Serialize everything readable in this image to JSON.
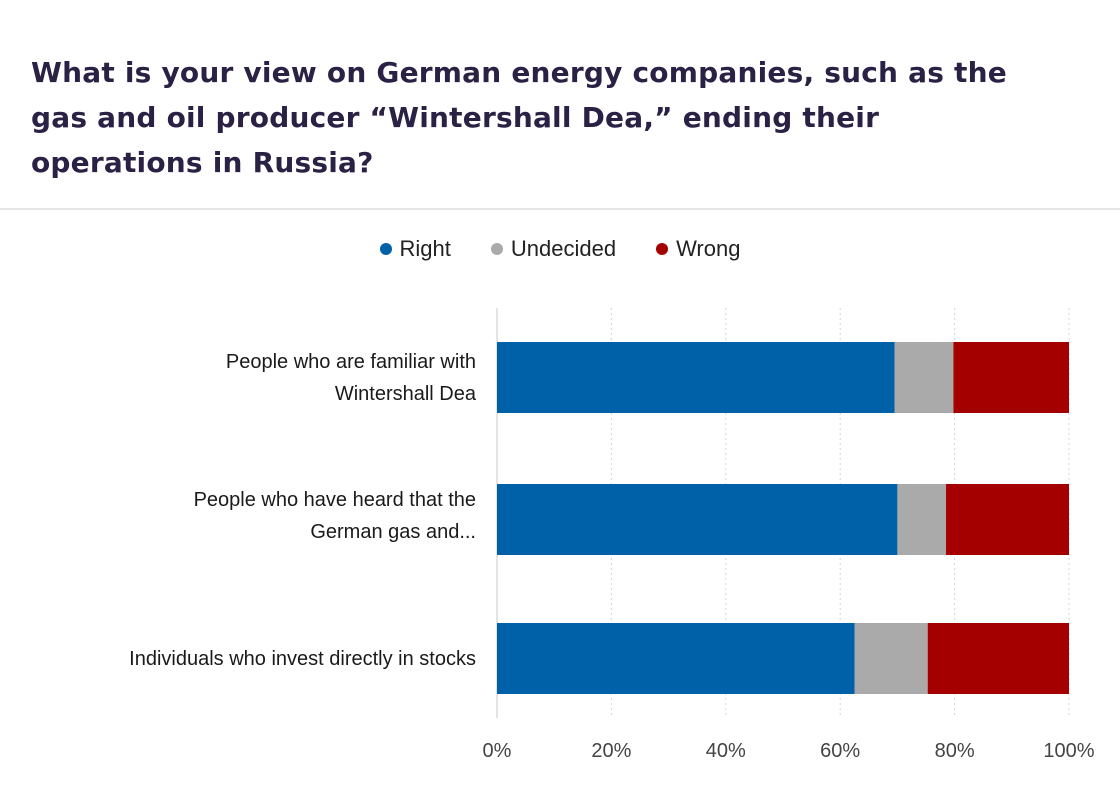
{
  "title_lines": [
    "What is your view on German energy companies, such as the",
    "gas and oil producer “Wintershall Dea,” ending their",
    "operations in Russia?"
  ],
  "chart_data": {
    "type": "bar",
    "orientation": "horizontal",
    "stacked": "percent",
    "categories": [
      [
        "People who are familiar with",
        "Wintershall Dea"
      ],
      [
        "People who have heard that the",
        "German gas and..."
      ],
      [
        "Individuals who invest directly in stocks"
      ]
    ],
    "series": [
      {
        "name": "Right",
        "color": "#0060a8",
        "values": [
          69.5,
          70,
          62.5
        ]
      },
      {
        "name": "Undecided",
        "color": "#aaaaaa",
        "values": [
          10.3,
          8.5,
          12.8
        ]
      },
      {
        "name": "Wrong",
        "color": "#a50000",
        "values": [
          20.2,
          21.5,
          24.7
        ]
      }
    ],
    "xlim": [
      0,
      100
    ],
    "xticks": [
      "0%",
      "20%",
      "40%",
      "60%",
      "80%",
      "100%"
    ],
    "legend_position": "top",
    "grid": "vertical dotted"
  }
}
